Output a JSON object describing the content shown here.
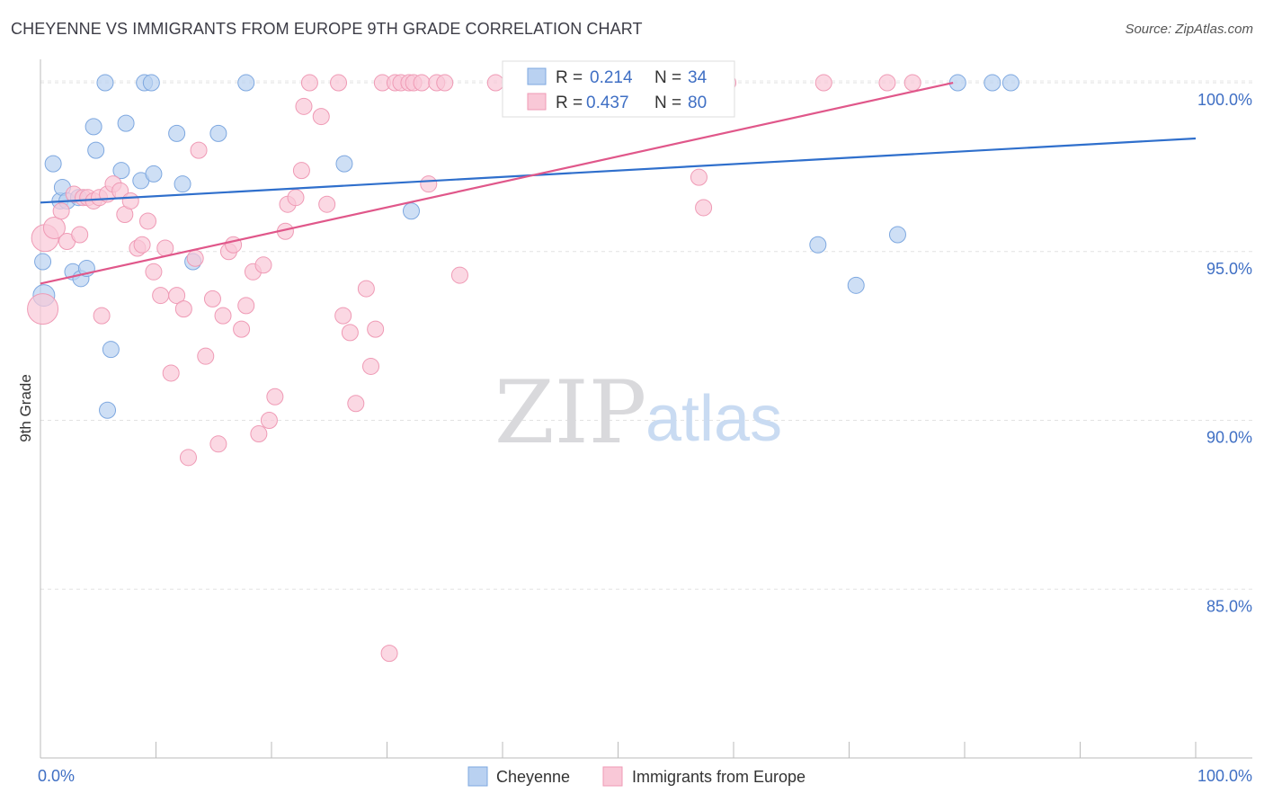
{
  "header": {
    "title": "CHEYENNE VS IMMIGRANTS FROM EUROPE 9TH GRADE CORRELATION CHART",
    "source": "Source: ZipAtlas.com"
  },
  "watermark": {
    "zip": "ZIP",
    "atlas": "atlas"
  },
  "chart_data": {
    "type": "scatter",
    "ylabel": "9th Grade",
    "xlim": [
      0,
      100
    ],
    "ylim": [
      80.0,
      100.8
    ],
    "x_tick_labels": [
      "0.0%",
      "100.0%"
    ],
    "y_ticks": [
      {
        "value": 100.0,
        "label": "100.0%"
      },
      {
        "value": 95.0,
        "label": "95.0%"
      },
      {
        "value": 90.0,
        "label": "90.0%"
      },
      {
        "value": 85.0,
        "label": "85.0%"
      }
    ],
    "grid": "dashed horizontal",
    "legend_position": "top-center",
    "series": [
      {
        "name": "Cheyenne",
        "r_label": "R =",
        "r_value": "0.214",
        "n_label": "N =",
        "n_value": "34",
        "color": "#7ea8e0",
        "fill": "#b9d1f1",
        "line_color": "#2f6fcc",
        "trend": {
          "x": [
            0,
            100
          ],
          "y": [
            96.45,
            98.35
          ]
        },
        "points": [
          [
            0.3,
            93.7
          ],
          [
            0.2,
            94.7
          ],
          [
            1.1,
            97.6
          ],
          [
            1.7,
            96.5
          ],
          [
            1.9,
            96.9
          ],
          [
            2.3,
            96.5
          ],
          [
            2.8,
            94.4
          ],
          [
            3.3,
            96.6
          ],
          [
            3.5,
            94.2
          ],
          [
            4.0,
            94.5
          ],
          [
            4.6,
            98.7
          ],
          [
            4.8,
            98.0
          ],
          [
            5.6,
            100.0
          ],
          [
            5.8,
            90.3
          ],
          [
            6.1,
            92.1
          ],
          [
            7.0,
            97.4
          ],
          [
            7.4,
            98.8
          ],
          [
            8.7,
            97.1
          ],
          [
            9.0,
            100.0
          ],
          [
            9.6,
            100.0
          ],
          [
            9.8,
            97.3
          ],
          [
            11.8,
            98.5
          ],
          [
            12.3,
            97.0
          ],
          [
            13.2,
            94.7
          ],
          [
            15.4,
            98.5
          ],
          [
            17.8,
            100.0
          ],
          [
            26.3,
            97.6
          ],
          [
            32.1,
            96.2
          ],
          [
            67.3,
            95.2
          ],
          [
            70.6,
            94.0
          ],
          [
            74.2,
            95.5
          ],
          [
            79.4,
            100.0
          ],
          [
            82.4,
            100.0
          ],
          [
            84.0,
            100.0
          ]
        ]
      },
      {
        "name": "Immigrants from Europe",
        "r_label": "R =",
        "r_value": "0.437",
        "n_label": "N =",
        "n_value": "80",
        "color": "#ef9ab5",
        "fill": "#f9c8d7",
        "line_color": "#e0578a",
        "trend": {
          "x": [
            0,
            79.0
          ],
          "y": [
            94.05,
            100.0
          ]
        },
        "points": [
          [
            0.2,
            93.3
          ],
          [
            0.4,
            95.4
          ],
          [
            1.2,
            95.7
          ],
          [
            1.8,
            96.2
          ],
          [
            2.3,
            95.3
          ],
          [
            2.9,
            96.7
          ],
          [
            3.4,
            95.5
          ],
          [
            3.7,
            96.6
          ],
          [
            4.1,
            96.6
          ],
          [
            4.6,
            96.5
          ],
          [
            5.1,
            96.6
          ],
          [
            5.3,
            93.1
          ],
          [
            5.8,
            96.7
          ],
          [
            6.3,
            97.0
          ],
          [
            6.9,
            96.8
          ],
          [
            7.3,
            96.1
          ],
          [
            7.8,
            96.5
          ],
          [
            8.4,
            95.1
          ],
          [
            8.8,
            95.2
          ],
          [
            9.3,
            95.9
          ],
          [
            9.8,
            94.4
          ],
          [
            10.4,
            93.7
          ],
          [
            10.8,
            95.1
          ],
          [
            11.3,
            91.4
          ],
          [
            11.8,
            93.7
          ],
          [
            12.4,
            93.3
          ],
          [
            12.8,
            88.9
          ],
          [
            13.4,
            94.8
          ],
          [
            13.7,
            98.0
          ],
          [
            14.3,
            91.9
          ],
          [
            14.9,
            93.6
          ],
          [
            15.4,
            89.3
          ],
          [
            15.8,
            93.1
          ],
          [
            16.3,
            95.0
          ],
          [
            16.7,
            95.2
          ],
          [
            17.4,
            92.7
          ],
          [
            17.8,
            93.4
          ],
          [
            18.4,
            94.4
          ],
          [
            18.9,
            89.6
          ],
          [
            19.3,
            94.6
          ],
          [
            19.8,
            90.0
          ],
          [
            20.3,
            90.7
          ],
          [
            21.2,
            95.6
          ],
          [
            21.4,
            96.4
          ],
          [
            22.1,
            96.6
          ],
          [
            22.6,
            97.4
          ],
          [
            22.8,
            99.3
          ],
          [
            23.3,
            100.0
          ],
          [
            24.3,
            99.0
          ],
          [
            24.8,
            96.4
          ],
          [
            25.8,
            100.0
          ],
          [
            26.2,
            93.1
          ],
          [
            26.8,
            92.6
          ],
          [
            27.3,
            90.5
          ],
          [
            28.2,
            93.9
          ],
          [
            28.6,
            91.6
          ],
          [
            29.0,
            92.7
          ],
          [
            29.6,
            100.0
          ],
          [
            30.2,
            83.1
          ],
          [
            30.7,
            100.0
          ],
          [
            31.2,
            100.0
          ],
          [
            31.9,
            100.0
          ],
          [
            32.3,
            100.0
          ],
          [
            33.0,
            100.0
          ],
          [
            33.6,
            97.0
          ],
          [
            34.3,
            100.0
          ],
          [
            35.0,
            100.0
          ],
          [
            36.3,
            94.3
          ],
          [
            39.4,
            100.0
          ],
          [
            40.8,
            100.0
          ],
          [
            44.6,
            100.0
          ],
          [
            47.2,
            100.0
          ],
          [
            53.5,
            100.0
          ],
          [
            56.1,
            100.0
          ],
          [
            59.5,
            100.0
          ],
          [
            57.0,
            97.2
          ],
          [
            57.4,
            96.3
          ],
          [
            67.8,
            100.0
          ],
          [
            73.3,
            100.0
          ],
          [
            75.5,
            100.0
          ]
        ]
      }
    ]
  }
}
